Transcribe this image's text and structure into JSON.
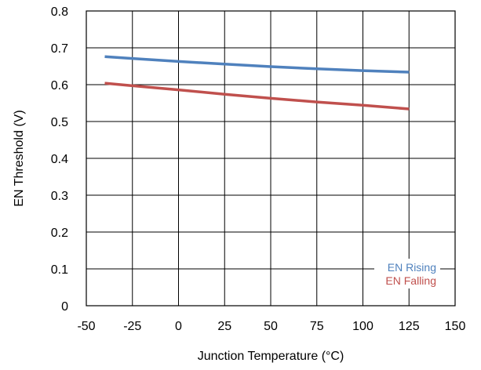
{
  "chart_data": {
    "type": "line",
    "xlabel": "Junction Temperature (°C)",
    "ylabel": "EN Threshold (V)",
    "xlim": [
      -50,
      150
    ],
    "ylim": [
      0,
      0.8
    ],
    "x_ticks": [
      "-50",
      "-25",
      "0",
      "25",
      "50",
      "75",
      "100",
      "125",
      "150"
    ],
    "y_ticks": [
      "0",
      "0.1",
      "0.2",
      "0.3",
      "0.4",
      "0.5",
      "0.6",
      "0.7",
      "0.8"
    ],
    "x_tick_values": [
      -50,
      -25,
      0,
      25,
      50,
      75,
      100,
      125,
      150
    ],
    "y_tick_values": [
      0,
      0.1,
      0.2,
      0.3,
      0.4,
      0.5,
      0.6,
      0.7,
      0.8
    ],
    "grid": true,
    "legend_position": "bottom-right",
    "series": [
      {
        "name": "EN Rising",
        "color": "#4f81bd",
        "x": [
          -40,
          -25,
          0,
          25,
          50,
          75,
          100,
          125
        ],
        "y": [
          0.676,
          0.671,
          0.663,
          0.656,
          0.649,
          0.643,
          0.638,
          0.634
        ]
      },
      {
        "name": "EN Falling",
        "color": "#c0504d",
        "x": [
          -40,
          -25,
          0,
          25,
          50,
          75,
          100,
          125
        ],
        "y": [
          0.604,
          0.597,
          0.586,
          0.574,
          0.563,
          0.553,
          0.544,
          0.534
        ]
      }
    ]
  }
}
